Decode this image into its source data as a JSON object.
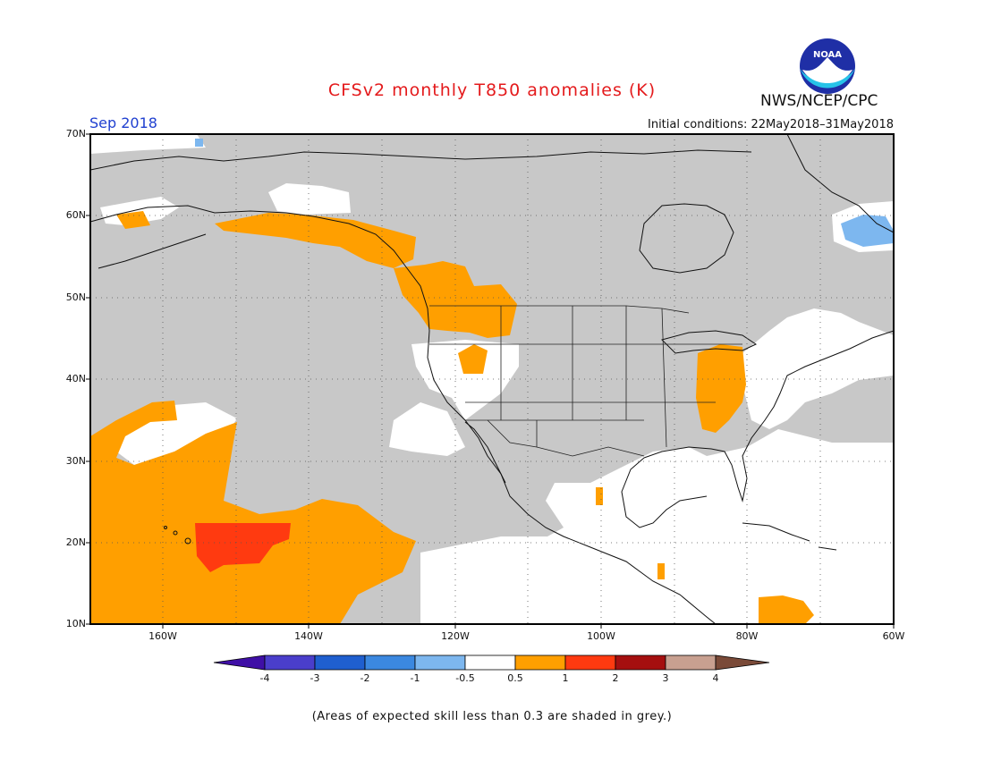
{
  "title": "CFSv2 monthly T850 anomalies (K)",
  "agency": "NWS/NCEP/CPC",
  "logo_text": "NOAA",
  "month_label": "Sep 2018",
  "initial_conditions": "Initial conditions: 22May2018–31May2018",
  "footnote": "(Areas of expected skill less than 0.3 are shaded in grey.)",
  "map": {
    "lon_range": [
      -170,
      -60
    ],
    "lat_range": [
      10,
      70
    ],
    "lat_labels": [
      "70N",
      "60N",
      "50N",
      "40N",
      "30N",
      "20N",
      "10N"
    ],
    "lon_labels": [
      "160W",
      "140W",
      "120W",
      "100W",
      "80W",
      "60W"
    ],
    "grid": "dotted, every 10°"
  },
  "colorbar": {
    "labels": [
      "-4",
      "-3",
      "-2",
      "-1",
      "-0.5",
      "0.5",
      "1",
      "2",
      "3",
      "4"
    ],
    "colors": [
      "#3f0fa6",
      "#4a3ecb",
      "#1f5fcf",
      "#3b88e0",
      "#7db7ef",
      "#ffffff",
      "#ff9f00",
      "#ff3a10",
      "#a50f0f",
      "#c8a090",
      "#7a4a38"
    ],
    "skill_grey": "#c8c8c8"
  },
  "regions": [
    {
      "anomaly": "0.5 to 1",
      "color": "#ff9f00",
      "where": "Eastern North Pacific / Gulf of Alaska coast"
    },
    {
      "anomaly": "0.5 to 1",
      "color": "#ff9f00",
      "where": "Pacific Northwest and Idaho"
    },
    {
      "anomaly": "0.5 to 1",
      "color": "#ff9f00",
      "where": "Ohio Valley / Great Lakes"
    },
    {
      "anomaly": "0.5 to 1",
      "color": "#ff9f00",
      "where": "Central Pacific around Hawaii"
    },
    {
      "anomaly": "1 to 2",
      "color": "#ff3a10",
      "where": "Northeast of Hawaii"
    },
    {
      "anomaly": "-1 to -0.5",
      "color": "#7db7ef",
      "where": "Labrador"
    }
  ]
}
